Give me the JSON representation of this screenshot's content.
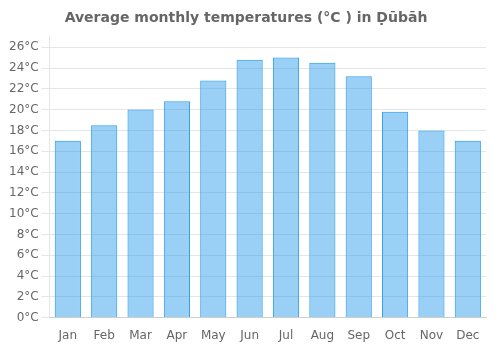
{
  "chart_data": {
    "type": "bar",
    "title": "Average monthly temperatures (°C ) in Ḍūbāh",
    "categories": [
      "Jan",
      "Feb",
      "Mar",
      "Apr",
      "May",
      "Jun",
      "Jul",
      "Aug",
      "Sep",
      "Oct",
      "Nov",
      "Dec"
    ],
    "values": [
      17.0,
      18.5,
      20.0,
      20.8,
      22.8,
      24.8,
      25.0,
      24.5,
      23.2,
      19.8,
      18.0,
      17.0
    ],
    "ylim": [
      0,
      27
    ],
    "yticks": [
      {
        "value": 0,
        "label": "0°C"
      },
      {
        "value": 2,
        "label": "2°C"
      },
      {
        "value": 4,
        "label": "4°C"
      },
      {
        "value": 6,
        "label": "6°C"
      },
      {
        "value": 8,
        "label": "8°C"
      },
      {
        "value": 10,
        "label": "10°C"
      },
      {
        "value": 12,
        "label": "12°C"
      },
      {
        "value": 14,
        "label": "14°C"
      },
      {
        "value": 16,
        "label": "16°C"
      },
      {
        "value": 18,
        "label": "18°C"
      },
      {
        "value": 20,
        "label": "20°C"
      },
      {
        "value": 22,
        "label": "22°C"
      },
      {
        "value": 24,
        "label": "24°C"
      },
      {
        "value": 26,
        "label": "26°C"
      }
    ],
    "grid": true
  }
}
